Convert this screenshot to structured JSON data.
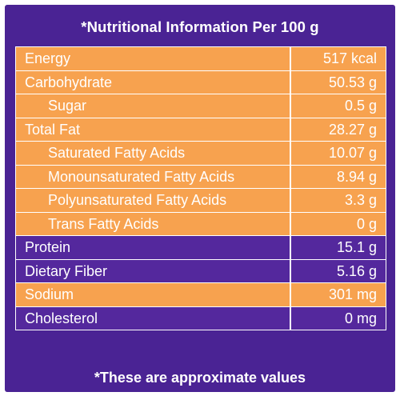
{
  "title": "*Nutritional Information Per 100 g",
  "rows": [
    {
      "label": "Energy",
      "value": "517 kcal",
      "style": "orange",
      "indent": false
    },
    {
      "label": "Carbohydrate",
      "value": "50.53 g",
      "style": "orange",
      "indent": false
    },
    {
      "label": "Sugar",
      "value": "0.5 g",
      "style": "orange",
      "indent": true
    },
    {
      "label": "Total Fat",
      "value": "28.27 g",
      "style": "orange",
      "indent": false
    },
    {
      "label": "Saturated Fatty Acids",
      "value": "10.07 g",
      "style": "orange",
      "indent": true
    },
    {
      "label": "Monounsaturated Fatty Acids",
      "value": "8.94 g",
      "style": "orange",
      "indent": true
    },
    {
      "label": "Polyunsaturated Fatty Acids",
      "value": "3.3 g",
      "style": "orange",
      "indent": true
    },
    {
      "label": "Trans Fatty Acids",
      "value": "0 g",
      "style": "orange",
      "indent": true
    },
    {
      "label": "Protein",
      "value": "15.1 g",
      "style": "purple",
      "indent": false
    },
    {
      "label": "Dietary Fiber",
      "value": "5.16 g",
      "style": "purple",
      "indent": false
    },
    {
      "label": "Sodium",
      "value": "301 mg",
      "style": "orange",
      "indent": false
    },
    {
      "label": "Cholesterol",
      "value": "0 mg",
      "style": "purple",
      "indent": false
    }
  ],
  "footer": "*These are approximate values",
  "colors": {
    "background": "#4a2394",
    "row_orange": "#f7a24f",
    "row_purple": "#54289d",
    "text": "#ffffff"
  }
}
